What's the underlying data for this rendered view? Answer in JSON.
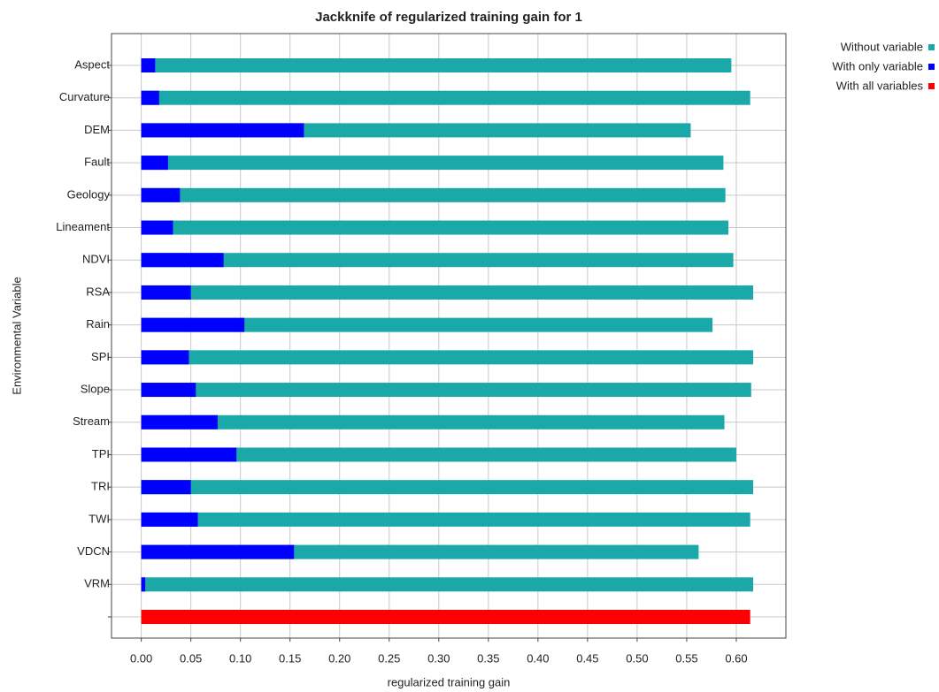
{
  "chart_data": {
    "type": "hbar-overlay",
    "title": "Jackknife of regularized training gain for 1",
    "x_label": "regularized training gain",
    "y_label": "Environmental Variable",
    "categories": [
      "Aspect",
      "Curvature",
      "DEM",
      "Fault",
      "Geology",
      "Lineament",
      "NDVI",
      "RSA",
      "Rain",
      "SPI",
      "Slope",
      "Stream",
      "TPI",
      "TRI",
      "TWI",
      "VDCN",
      "VRM",
      null
    ],
    "series": [
      {
        "name": "Without variable",
        "color": "#1aa8a8",
        "values": [
          0.595,
          0.614,
          0.554,
          0.587,
          0.589,
          0.592,
          0.597,
          0.617,
          0.576,
          0.617,
          0.615,
          0.588,
          0.6,
          0.617,
          0.614,
          0.562,
          0.617,
          null
        ]
      },
      {
        "name": "With only variable",
        "color": "#0000ff",
        "values": [
          0.014,
          0.018,
          0.164,
          0.027,
          0.039,
          0.032,
          0.083,
          0.05,
          0.104,
          0.048,
          0.055,
          0.077,
          0.096,
          0.05,
          0.057,
          0.154,
          0.004,
          null
        ]
      },
      {
        "name": "With all variables",
        "color": "#ff0000",
        "values": [
          null,
          null,
          null,
          null,
          null,
          null,
          null,
          null,
          null,
          null,
          null,
          null,
          null,
          null,
          null,
          null,
          null,
          0.614
        ]
      }
    ],
    "xlim": [
      -0.03,
      0.65
    ],
    "xticks": [
      {
        "value": 0,
        "label": "0.00"
      },
      0.05,
      {
        "value": 0.1,
        "label": "0.10"
      },
      0.15,
      {
        "value": 0.2,
        "label": "0.20"
      },
      0.25,
      {
        "value": 0.3,
        "label": "0.30"
      },
      0.35,
      {
        "value": 0.4,
        "label": "0.40"
      },
      0.45,
      {
        "value": 0.5,
        "label": "0.50"
      },
      0.55,
      {
        "value": 0.6,
        "label": "0.60"
      }
    ],
    "grid": true,
    "legend": "outside-top-right"
  }
}
